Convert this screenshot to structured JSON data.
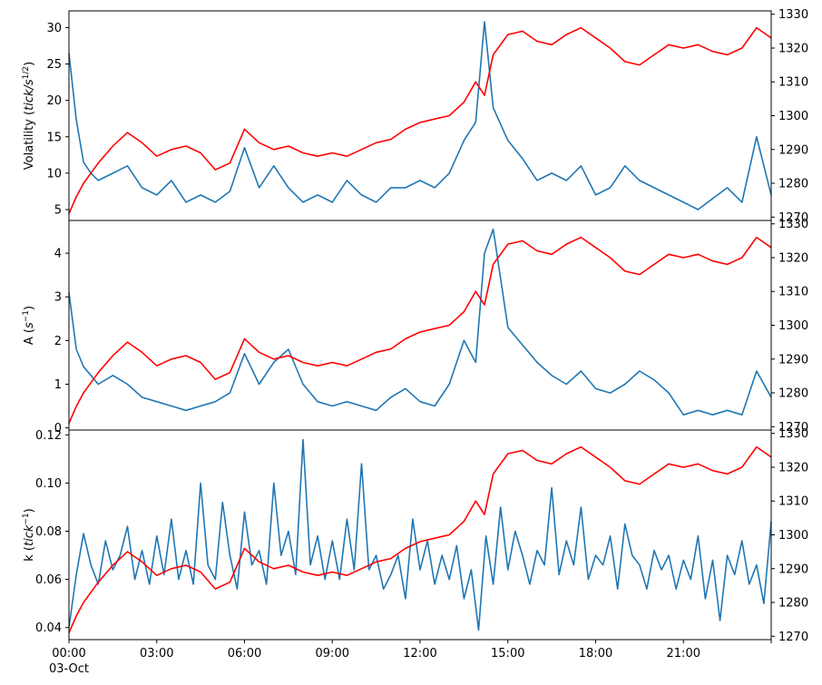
{
  "chart_data": [
    {
      "type": "line",
      "ylabel": "Volatility (tick/s^{1/2})",
      "ylabel_main": "Volatility (",
      "ylabel_var": "tick/s",
      "ylabel_sup": "1/2",
      "ylabel_close": ")",
      "ylim": [
        3.5,
        32.3
      ],
      "yticks": [
        5,
        10,
        15,
        20,
        25,
        30
      ],
      "ylim_right": [
        1269,
        1331
      ],
      "yticks_right": [
        1270,
        1280,
        1290,
        1300,
        1310,
        1320,
        1330
      ],
      "series": [
        {
          "axis": "left",
          "color": "#1f77b4",
          "x": [
            0,
            0.25,
            0.5,
            0.75,
            1,
            1.5,
            2,
            2.5,
            3,
            3.5,
            4,
            4.5,
            5,
            5.5,
            6,
            6.5,
            7,
            7.5,
            8,
            8.5,
            9,
            9.5,
            10,
            10.5,
            11,
            11.5,
            12,
            12.5,
            13,
            13.5,
            13.9,
            14.2,
            14.5,
            15,
            15.5,
            16,
            16.5,
            17,
            17.5,
            18,
            18.5,
            19,
            19.5,
            20,
            20.5,
            21,
            21.5,
            22,
            22.5,
            23,
            23.5,
            24
          ],
          "values": [
            26.5,
            17.3,
            11.5,
            10,
            9,
            10,
            11,
            8,
            7,
            9,
            6,
            7,
            6,
            7.5,
            13.5,
            8,
            11,
            8,
            6,
            7,
            6,
            9,
            7,
            6,
            8,
            8,
            9,
            8,
            10,
            14.5,
            17,
            30.8,
            19,
            14.5,
            12,
            9,
            10,
            9,
            11,
            7,
            8,
            11,
            9,
            8,
            7,
            6,
            5,
            6.5,
            8,
            6,
            15,
            7
          ]
        },
        {
          "axis": "right",
          "color": "#ff0000",
          "x": [
            0,
            0.25,
            0.5,
            0.75,
            1,
            1.5,
            2,
            2.5,
            3,
            3.5,
            4,
            4.5,
            5,
            5.5,
            6,
            6.5,
            7,
            7.5,
            8,
            8.5,
            9,
            9.5,
            10,
            10.5,
            11,
            11.5,
            12,
            12.5,
            13,
            13.5,
            13.9,
            14.2,
            14.5,
            15,
            15.5,
            16,
            16.5,
            17,
            17.5,
            18,
            18.5,
            19,
            19.5,
            20,
            20.5,
            21,
            21.5,
            22,
            22.5,
            23,
            23.5,
            24
          ],
          "values": [
            1271,
            1276,
            1280,
            1283,
            1286,
            1291,
            1295,
            1292,
            1288,
            1290,
            1291,
            1289,
            1284,
            1286,
            1296,
            1292,
            1290,
            1291,
            1289,
            1288,
            1289,
            1288,
            1290,
            1292,
            1293,
            1296,
            1298,
            1299,
            1300,
            1304,
            1310,
            1306,
            1318,
            1324,
            1325,
            1322,
            1321,
            1324,
            1326,
            1323,
            1320,
            1316,
            1315,
            1318,
            1321,
            1320,
            1321,
            1319,
            1318,
            1320,
            1326,
            1323
          ]
        }
      ]
    },
    {
      "type": "line",
      "ylabel": "A (s^{-1})",
      "ylabel_main": "A (",
      "ylabel_var": "s",
      "ylabel_sup": "−1",
      "ylabel_close": ")",
      "ylim": [
        -0.05,
        4.75
      ],
      "yticks": [
        0,
        1,
        2,
        3,
        4
      ],
      "ylim_right": [
        1269,
        1331
      ],
      "yticks_right": [
        1270,
        1280,
        1290,
        1300,
        1310,
        1320,
        1330
      ],
      "series": [
        {
          "axis": "left",
          "color": "#1f77b4",
          "x": [
            0,
            0.25,
            0.5,
            0.75,
            1,
            1.5,
            2,
            2.5,
            3,
            3.5,
            4,
            4.5,
            5,
            5.5,
            6,
            6.5,
            7,
            7.5,
            8,
            8.5,
            9,
            9.5,
            10,
            10.5,
            11,
            11.5,
            12,
            12.5,
            13,
            13.5,
            13.9,
            14.2,
            14.5,
            15,
            15.5,
            16,
            16.5,
            17,
            17.5,
            18,
            18.5,
            19,
            19.5,
            20,
            20.5,
            21,
            21.5,
            22,
            22.5,
            23,
            23.5,
            24
          ],
          "values": [
            3.1,
            1.8,
            1.4,
            1.2,
            1.0,
            1.2,
            1.0,
            0.7,
            0.6,
            0.5,
            0.4,
            0.5,
            0.6,
            0.8,
            1.7,
            1.0,
            1.5,
            1.8,
            1.0,
            0.6,
            0.5,
            0.6,
            0.5,
            0.4,
            0.7,
            0.9,
            0.6,
            0.5,
            1.0,
            2.0,
            1.5,
            4.0,
            4.55,
            2.3,
            1.9,
            1.5,
            1.2,
            1.0,
            1.3,
            0.9,
            0.8,
            1.0,
            1.3,
            1.1,
            0.8,
            0.3,
            0.4,
            0.3,
            0.4,
            0.3,
            1.3,
            0.7
          ]
        },
        {
          "axis": "right",
          "color": "#ff0000",
          "x": [
            0,
            0.25,
            0.5,
            0.75,
            1,
            1.5,
            2,
            2.5,
            3,
            3.5,
            4,
            4.5,
            5,
            5.5,
            6,
            6.5,
            7,
            7.5,
            8,
            8.5,
            9,
            9.5,
            10,
            10.5,
            11,
            11.5,
            12,
            12.5,
            13,
            13.5,
            13.9,
            14.2,
            14.5,
            15,
            15.5,
            16,
            16.5,
            17,
            17.5,
            18,
            18.5,
            19,
            19.5,
            20,
            20.5,
            21,
            21.5,
            22,
            22.5,
            23,
            23.5,
            24
          ],
          "values": [
            1271,
            1276,
            1280,
            1283,
            1286,
            1291,
            1295,
            1292,
            1288,
            1290,
            1291,
            1289,
            1284,
            1286,
            1296,
            1292,
            1290,
            1291,
            1289,
            1288,
            1289,
            1288,
            1290,
            1292,
            1293,
            1296,
            1298,
            1299,
            1300,
            1304,
            1310,
            1306,
            1318,
            1324,
            1325,
            1322,
            1321,
            1324,
            1326,
            1323,
            1320,
            1316,
            1315,
            1318,
            1321,
            1320,
            1321,
            1319,
            1318,
            1320,
            1326,
            1323
          ]
        }
      ]
    },
    {
      "type": "line",
      "ylabel": "k (tick^{-1})",
      "ylabel_main": "k (",
      "ylabel_var": "tick",
      "ylabel_sup": "−1",
      "ylabel_close": ")",
      "ylim": [
        0.035,
        0.122
      ],
      "yticks": [
        0.04,
        0.06,
        0.08,
        0.1,
        0.12
      ],
      "ytick_labels": [
        "0.04",
        "0.06",
        "0.08",
        "0.10",
        "0.12"
      ],
      "ylim_right": [
        1269,
        1331
      ],
      "yticks_right": [
        1270,
        1280,
        1290,
        1300,
        1310,
        1320,
        1330
      ],
      "series": [
        {
          "axis": "left",
          "color": "#1f77b4",
          "x": [
            0,
            0.25,
            0.5,
            0.75,
            1,
            1.25,
            1.5,
            1.75,
            2,
            2.25,
            2.5,
            2.75,
            3,
            3.25,
            3.5,
            3.75,
            4,
            4.25,
            4.5,
            4.75,
            5,
            5.25,
            5.5,
            5.75,
            6,
            6.25,
            6.5,
            6.75,
            7,
            7.25,
            7.5,
            7.75,
            8,
            8.25,
            8.5,
            8.75,
            9,
            9.25,
            9.5,
            9.75,
            10,
            10.25,
            10.5,
            10.75,
            11,
            11.25,
            11.5,
            11.75,
            12,
            12.25,
            12.5,
            12.75,
            13,
            13.25,
            13.5,
            13.75,
            14,
            14.25,
            14.5,
            14.75,
            15,
            15.25,
            15.5,
            15.75,
            16,
            16.25,
            16.5,
            16.75,
            17,
            17.25,
            17.5,
            17.75,
            18,
            18.25,
            18.5,
            18.75,
            19,
            19.25,
            19.5,
            19.75,
            20,
            20.25,
            20.5,
            20.75,
            21,
            21.25,
            21.5,
            21.75,
            22,
            22.25,
            22.5,
            22.75,
            23,
            23.25,
            23.5,
            23.75,
            24
          ],
          "values": [
            0.04,
            0.062,
            0.079,
            0.066,
            0.058,
            0.076,
            0.064,
            0.07,
            0.082,
            0.06,
            0.072,
            0.058,
            0.078,
            0.062,
            0.085,
            0.06,
            0.072,
            0.058,
            0.1,
            0.066,
            0.06,
            0.092,
            0.07,
            0.056,
            0.088,
            0.066,
            0.072,
            0.058,
            0.1,
            0.07,
            0.08,
            0.062,
            0.118,
            0.066,
            0.078,
            0.06,
            0.076,
            0.06,
            0.085,
            0.064,
            0.108,
            0.064,
            0.07,
            0.056,
            0.062,
            0.07,
            0.052,
            0.085,
            0.064,
            0.076,
            0.058,
            0.07,
            0.06,
            0.074,
            0.052,
            0.064,
            0.039,
            0.078,
            0.058,
            0.09,
            0.064,
            0.08,
            0.07,
            0.058,
            0.072,
            0.066,
            0.098,
            0.062,
            0.076,
            0.066,
            0.09,
            0.06,
            0.07,
            0.066,
            0.078,
            0.056,
            0.083,
            0.07,
            0.066,
            0.056,
            0.072,
            0.064,
            0.07,
            0.056,
            0.068,
            0.06,
            0.078,
            0.052,
            0.068,
            0.043,
            0.07,
            0.062,
            0.076,
            0.058,
            0.066,
            0.05,
            0.084
          ]
        },
        {
          "axis": "right",
          "color": "#ff0000",
          "x": [
            0,
            0.25,
            0.5,
            0.75,
            1,
            1.5,
            2,
            2.5,
            3,
            3.5,
            4,
            4.5,
            5,
            5.5,
            6,
            6.5,
            7,
            7.5,
            8,
            8.5,
            9,
            9.5,
            10,
            10.5,
            11,
            11.5,
            12,
            12.5,
            13,
            13.5,
            13.9,
            14.2,
            14.5,
            15,
            15.5,
            16,
            16.5,
            17,
            17.5,
            18,
            18.5,
            19,
            19.5,
            20,
            20.5,
            21,
            21.5,
            22,
            22.5,
            23,
            23.5,
            24
          ],
          "values": [
            1271,
            1276,
            1280,
            1283,
            1286,
            1291,
            1295,
            1292,
            1288,
            1290,
            1291,
            1289,
            1284,
            1286,
            1296,
            1292,
            1290,
            1291,
            1289,
            1288,
            1289,
            1288,
            1290,
            1292,
            1293,
            1296,
            1298,
            1299,
            1300,
            1304,
            1310,
            1306,
            1318,
            1324,
            1325,
            1322,
            1321,
            1324,
            1326,
            1323,
            1320,
            1316,
            1315,
            1318,
            1321,
            1320,
            1321,
            1319,
            1318,
            1320,
            1326,
            1323
          ]
        }
      ]
    }
  ],
  "xaxis": {
    "xlim_hours": [
      0,
      24
    ],
    "tick_hours": [
      0,
      3,
      6,
      9,
      12,
      15,
      18,
      21
    ],
    "tick_labels": [
      "00:00",
      "03:00",
      "06:00",
      "09:00",
      "12:00",
      "15:00",
      "18:00",
      "21:00"
    ],
    "date_label": "03-Oct"
  }
}
